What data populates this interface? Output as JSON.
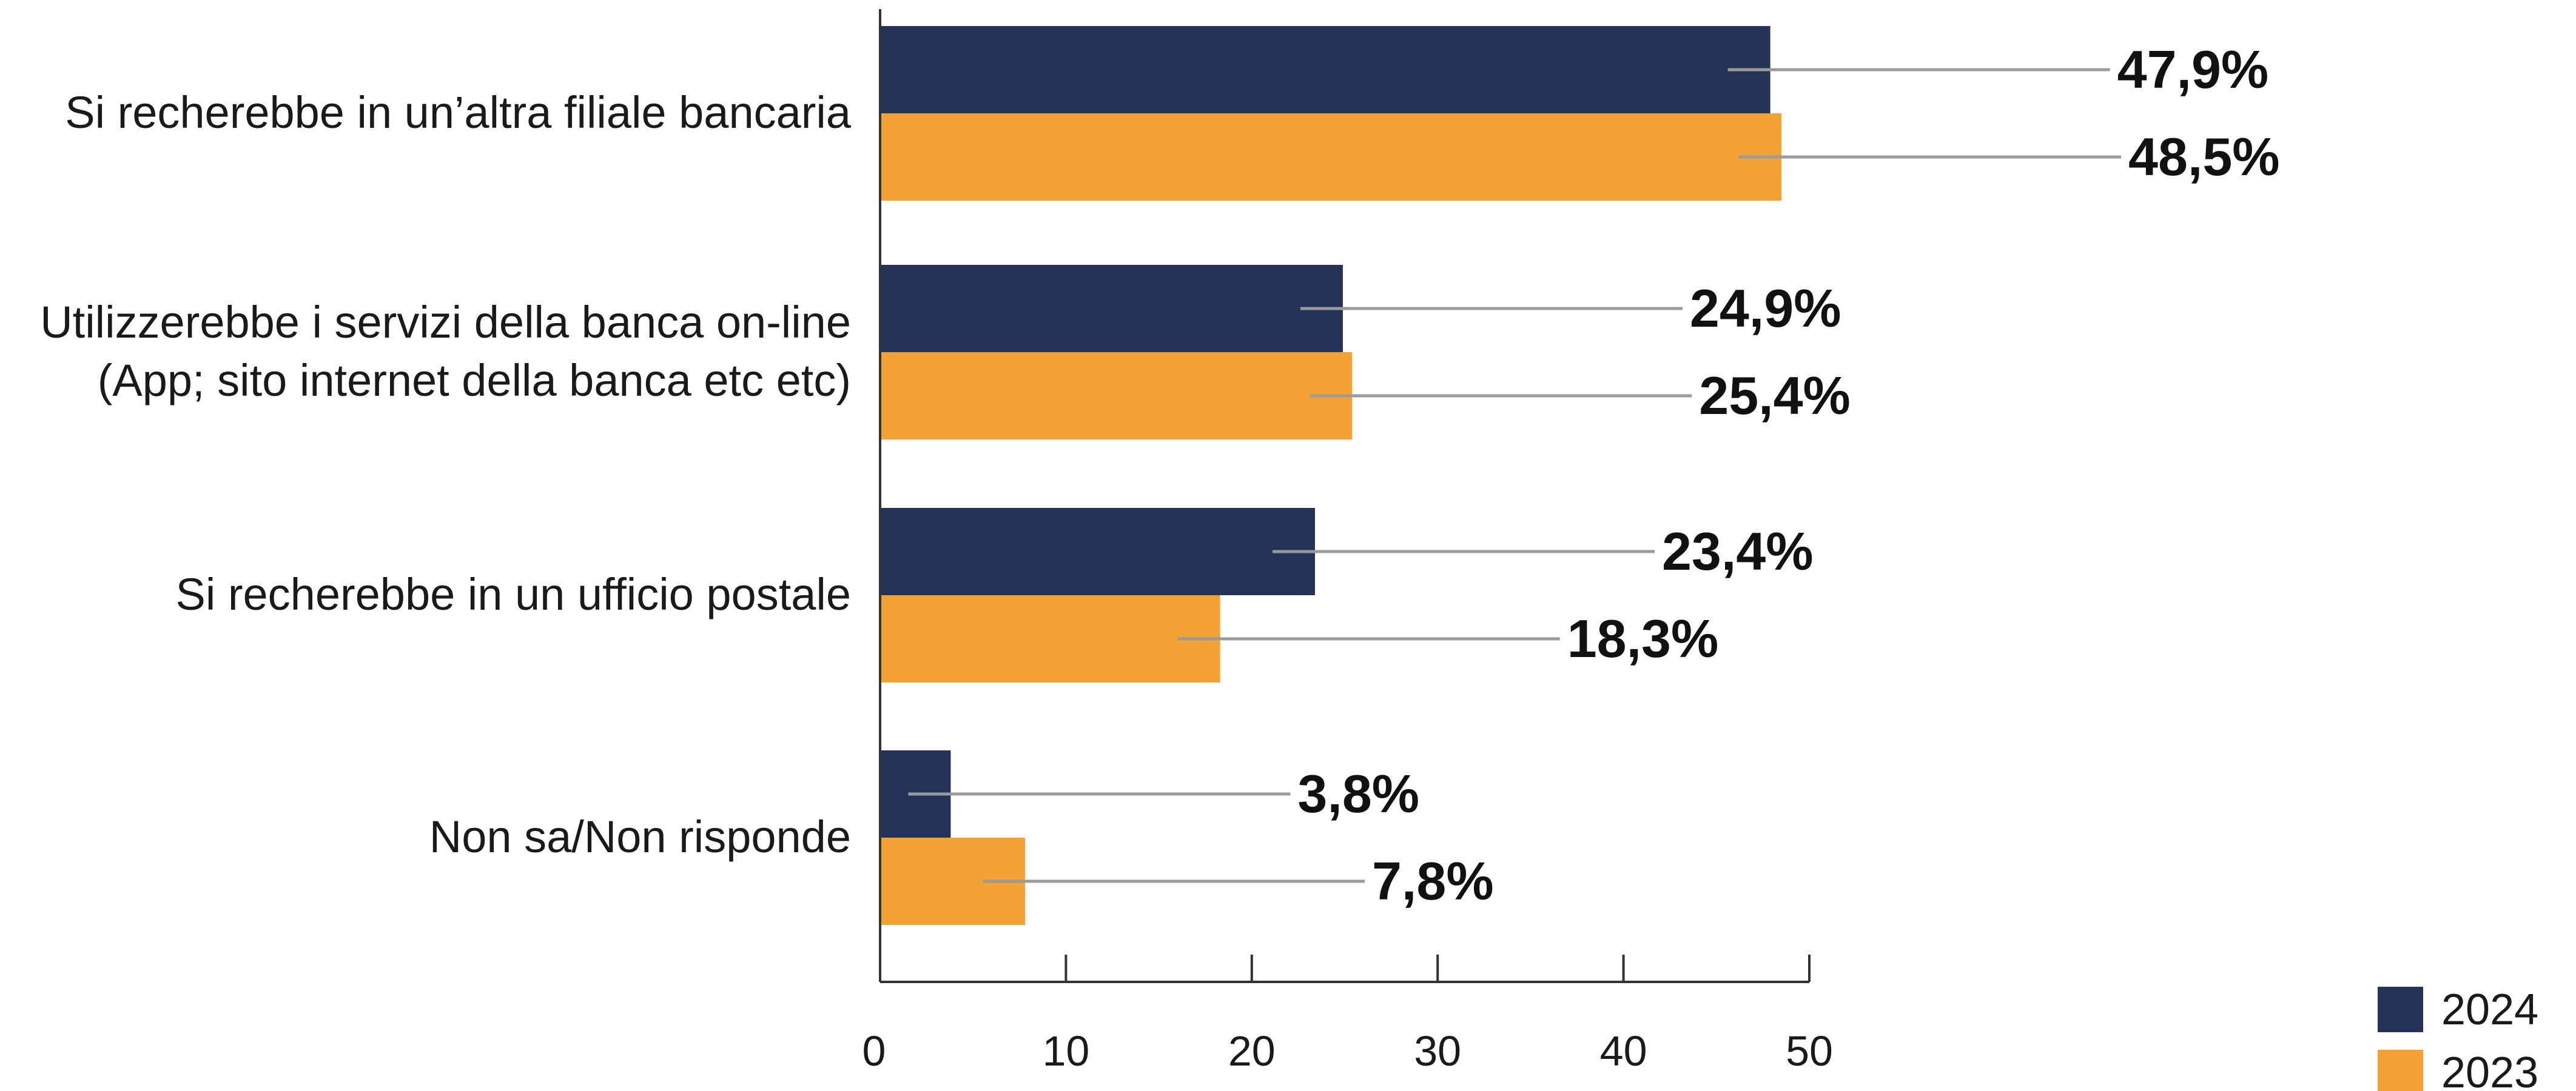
{
  "chart_data": {
    "type": "bar",
    "orientation": "horizontal",
    "categories": [
      [
        "Si recherebbe in un’altra filiale bancaria"
      ],
      [
        "Utilizzerebbe i servizi della banca on-line",
        "(App; sito internet della banca etc etc)"
      ],
      [
        "Si recherebbe in un ufficio postale"
      ],
      [
        "Non sa/Non risponde"
      ]
    ],
    "series": [
      {
        "name": "2024",
        "color": "#253359",
        "values": [
          47.9,
          24.9,
          23.4,
          3.8
        ],
        "labels": [
          "47,9%",
          "24,9%",
          "23,4%",
          "3,8%"
        ]
      },
      {
        "name": "2023",
        "color": "#f5a235",
        "values": [
          48.5,
          25.4,
          18.3,
          7.8
        ],
        "labels": [
          "48,5%",
          "25,4%",
          "18,3%",
          "7,8%"
        ]
      }
    ],
    "xlim": [
      0,
      50
    ],
    "xticks": [
      "0",
      "10",
      "20",
      "30",
      "40",
      "50"
    ],
    "grid": false,
    "legend_position": "bottom-right"
  }
}
